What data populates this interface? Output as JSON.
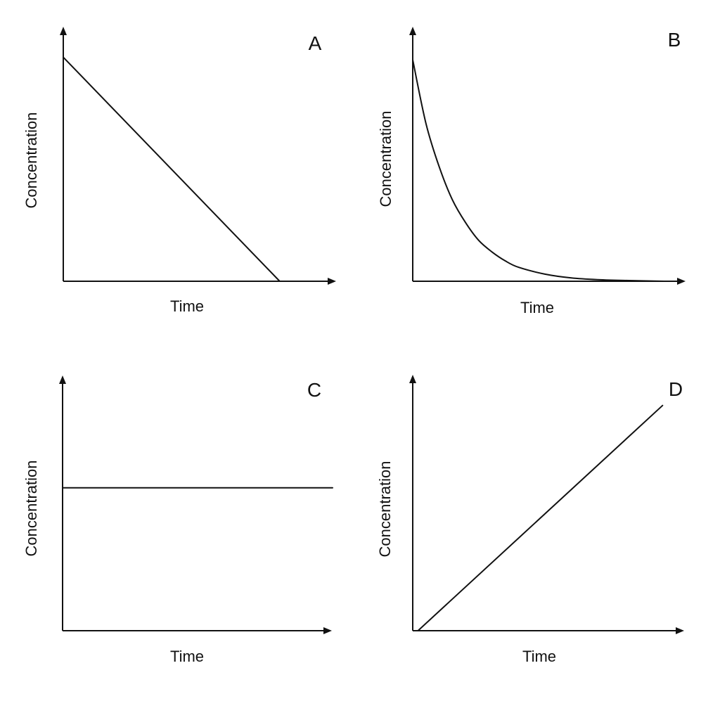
{
  "chart_data": [
    {
      "type": "line",
      "panel": "A",
      "xlabel": "Time",
      "ylabel": "Concentration",
      "xlim": [
        0,
        10
      ],
      "ylim": [
        0,
        10
      ],
      "grid": false,
      "series": [
        {
          "x": [
            0,
            8.1
          ],
          "y": [
            8.8,
            0
          ]
        }
      ]
    },
    {
      "type": "line",
      "panel": "B",
      "xlabel": "Time",
      "ylabel": "Concentration",
      "xlim": [
        0,
        10
      ],
      "ylim": [
        0,
        10
      ],
      "grid": false,
      "series": [
        {
          "x": [
            0,
            0.5,
            1,
            1.5,
            2,
            2.5,
            3,
            3.5,
            4,
            5,
            6,
            7,
            8,
            9.5
          ],
          "y": [
            8.7,
            6.2,
            4.5,
            3.2,
            2.3,
            1.6,
            1.15,
            0.8,
            0.55,
            0.28,
            0.13,
            0.06,
            0.03,
            0.0
          ]
        }
      ]
    },
    {
      "type": "line",
      "panel": "C",
      "xlabel": "Time",
      "ylabel": "Concentration",
      "xlim": [
        0,
        10
      ],
      "ylim": [
        0,
        10
      ],
      "grid": false,
      "series": [
        {
          "x": [
            0,
            10
          ],
          "y": [
            5.6,
            5.6
          ]
        }
      ]
    },
    {
      "type": "line",
      "panel": "D",
      "xlabel": "Time",
      "ylabel": "Concentration",
      "xlim": [
        0,
        10
      ],
      "ylim": [
        0,
        10
      ],
      "grid": false,
      "series": [
        {
          "x": [
            0.2,
            9.5
          ],
          "y": [
            0,
            8.8
          ]
        }
      ]
    }
  ]
}
